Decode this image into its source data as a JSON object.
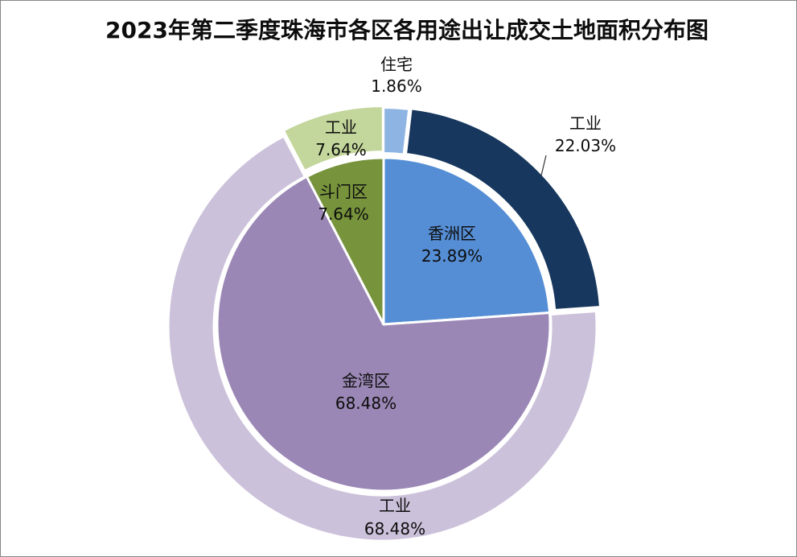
{
  "chart_data": {
    "type": "pie",
    "title": "2023年第二季度珠海市各区各用途出让成交土地面积分布图",
    "slices": [
      {
        "label": "香洲区",
        "value": 23.89,
        "value_label": "23.89%",
        "color": "#558ED5",
        "segments": [
          {
            "label": "住宅",
            "value": 1.86,
            "value_label": "1.86%",
            "color": "#8DB4E2"
          },
          {
            "label": "工业",
            "value": 22.03,
            "value_label": "22.03%",
            "color": "#17375E"
          }
        ]
      },
      {
        "label": "金湾区",
        "value": 68.48,
        "value_label": "68.48%",
        "color": "#9A87B5",
        "segments": [
          {
            "label": "工业",
            "value": 68.48,
            "value_label": "68.48%",
            "color": "#CCC1DA"
          }
        ]
      },
      {
        "label": "斗门区",
        "value": 7.64,
        "value_label": "7.64%",
        "color": "#77933C",
        "segments": [
          {
            "label": "工业",
            "value": 7.64,
            "value_label": "7.64%",
            "color": "#C3D69B"
          }
        ]
      }
    ]
  }
}
